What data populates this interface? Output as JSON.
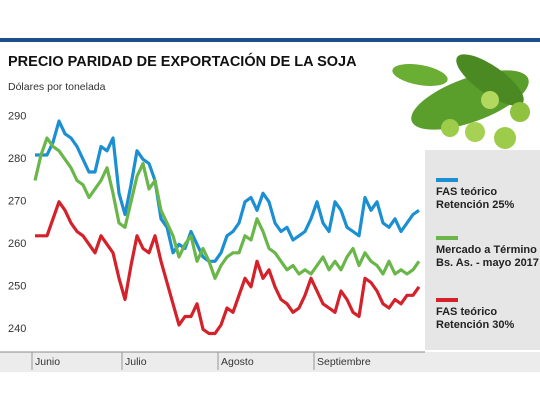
{
  "chart_data": {
    "type": "line",
    "title": "PRECIO PARIDAD DE EXPORTACIÓN DE LA SOJA",
    "y_label": "Dólares por tonelada",
    "categories": [
      "Junio",
      null,
      null,
      null,
      null,
      null,
      null,
      null,
      null,
      null,
      null,
      null,
      null,
      null,
      null,
      "Julio",
      null,
      null,
      null,
      null,
      null,
      null,
      null,
      null,
      null,
      null,
      null,
      null,
      null,
      null,
      null,
      "Agosto",
      null,
      null,
      null,
      null,
      null,
      null,
      null,
      null,
      null,
      null,
      null,
      null,
      null,
      null,
      null,
      "Septiembre",
      null,
      null,
      null,
      null,
      null,
      null,
      null,
      null,
      null,
      null,
      null,
      null,
      null,
      null,
      null,
      null,
      null
    ],
    "series": [
      {
        "name": "FAS teórico Retención 25%",
        "color": "#1b8fd2",
        "values": [
          281,
          281,
          281,
          284,
          289,
          286,
          285,
          283,
          280,
          277,
          277,
          283,
          282,
          285,
          272,
          267,
          274,
          282,
          280,
          279,
          275,
          266,
          264,
          258,
          260,
          259,
          263,
          260,
          257,
          256,
          256,
          258,
          262,
          263,
          265,
          270,
          271,
          268,
          272,
          270,
          265,
          263,
          264,
          261,
          262,
          263,
          266,
          270,
          265,
          263,
          270,
          268,
          264,
          263,
          262,
          271,
          268,
          270,
          265,
          264,
          266,
          263,
          265,
          267,
          268
        ]
      },
      {
        "name": "Mercado a Término Bs. As. - mayo 2017",
        "color": "#6ab64a",
        "values": [
          275,
          281,
          285,
          283,
          282,
          280,
          278,
          275,
          274,
          271,
          273,
          275,
          278,
          272,
          265,
          264,
          270,
          276,
          279,
          273,
          275,
          268,
          265,
          262,
          257,
          260,
          262,
          256,
          259,
          256,
          252,
          255,
          257,
          258,
          258,
          262,
          261,
          266,
          263,
          259,
          258,
          256,
          254,
          255,
          253,
          254,
          253,
          255,
          257,
          254,
          256,
          254,
          257,
          259,
          255,
          258,
          256,
          255,
          253,
          256,
          253,
          254,
          253,
          254,
          256
        ]
      },
      {
        "name": "FAS teórico Retención 30%",
        "color": "#d4212a",
        "values": [
          262,
          262,
          262,
          266,
          270,
          268,
          265,
          263,
          262,
          260,
          258,
          262,
          260,
          258,
          252,
          247,
          255,
          262,
          259,
          258,
          262,
          256,
          251,
          246,
          241,
          243,
          243,
          246,
          240,
          239,
          239,
          241,
          245,
          244,
          248,
          252,
          250,
          256,
          252,
          254,
          250,
          247,
          246,
          244,
          245,
          248,
          252,
          249,
          246,
          245,
          244,
          249,
          247,
          244,
          243,
          252,
          251,
          249,
          246,
          245,
          247,
          246,
          248,
          248,
          250
        ]
      }
    ],
    "ylim": [
      237,
      293
    ],
    "yticks": [
      240,
      250,
      260,
      270,
      280,
      290
    ],
    "grid": false,
    "legend": "right"
  }
}
